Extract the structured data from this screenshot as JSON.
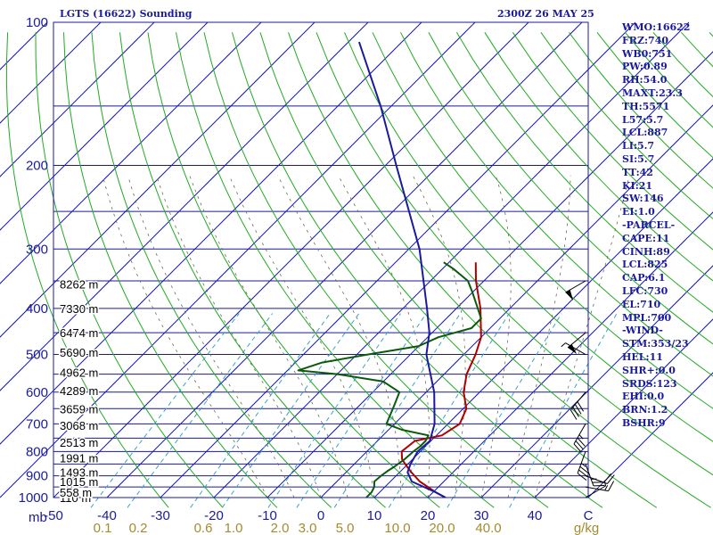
{
  "header": {
    "station": "LGTS (16622) Sounding",
    "time": "2300Z 26 MAY 25"
  },
  "stats": [
    "WMO:16622",
    "FRZ:740",
    "WB0:751",
    "PW:0.89",
    "RH:54.0",
    "MAXT:23.3",
    "TH:5571",
    "L57:5.7",
    "LCL:887",
    "LI:5.7",
    "SI:5.7",
    "TT:42",
    "KI:21",
    "SW:146",
    "EI:1.0",
    "-PARCEL-",
    "CAPE:11",
    "CINH:89",
    "LCL:825",
    "CAP:6.1",
    "LFC:730",
    "EL:710",
    "MPL:700",
    "-WIND-",
    "STM:353/23",
    "HEL:11",
    "SHR+:0.0",
    "SRDS:123",
    "EHI:0.0",
    "BRN:1.2",
    "BSHR:9"
  ],
  "chart_data": {
    "type": "line",
    "title": "LGTS (16622) Sounding",
    "xlabel": "",
    "ylabel": "mb",
    "xlim": [
      -50,
      50
    ],
    "ylim": [
      1000,
      100
    ],
    "y_scale": "log",
    "grid": true,
    "x_ticks": [
      "-50",
      "-40",
      "-30",
      "-20",
      "-10",
      "0",
      "10",
      "20",
      "30",
      "40",
      "C"
    ],
    "y_ticks": [
      "100",
      "200",
      "300",
      "400",
      "500",
      "600",
      "700",
      "800",
      "900",
      "1000"
    ],
    "y_tick_values": [
      100,
      200,
      300,
      400,
      500,
      600,
      700,
      800,
      900,
      1000
    ],
    "mixing_ratio_labels": [
      "0.1",
      "0.2",
      "0.6",
      "1.0",
      "2.0",
      "3.0",
      "5.0",
      "10.0",
      "20.0",
      "40.0",
      "g/kg"
    ],
    "height_labels": [
      {
        "p": 1000,
        "text": "110 m"
      },
      {
        "p": 975,
        "text": "558 m"
      },
      {
        "p": 925,
        "text": "1015 m"
      },
      {
        "p": 885,
        "text": "1493 m"
      },
      {
        "p": 825,
        "text": "1991 m"
      },
      {
        "p": 765,
        "text": "2513 m"
      },
      {
        "p": 705,
        "text": "3068 m"
      },
      {
        "p": 650,
        "text": "3659 m"
      },
      {
        "p": 595,
        "text": "4289 m"
      },
      {
        "p": 545,
        "text": "4962 m"
      },
      {
        "p": 495,
        "text": "5690 m"
      },
      {
        "p": 450,
        "text": "6474 m"
      },
      {
        "p": 400,
        "text": "7330 m"
      },
      {
        "p": 355,
        "text": "8262 m"
      }
    ],
    "series": [
      {
        "color": "#b00000",
        "values": [
          [
            1000,
            23.3
          ],
          [
            975,
            20.5
          ],
          [
            925,
            15.5
          ],
          [
            885,
            12.2
          ],
          [
            850,
            9.5
          ],
          [
            830,
            8.0
          ],
          [
            800,
            6.5
          ],
          [
            760,
            7.0
          ],
          [
            740,
            11.0
          ],
          [
            700,
            12.2
          ],
          [
            650,
            10.6
          ],
          [
            600,
            7.0
          ],
          [
            550,
            4.2
          ],
          [
            500,
            2.2
          ],
          [
            460,
            0.0
          ],
          [
            400,
            -5.5
          ],
          [
            350,
            -11.5
          ],
          [
            320,
            -15.0
          ]
        ]
      },
      {
        "color": "#0b5a0b",
        "values": [
          [
            1000,
            8.5
          ],
          [
            975,
            8.5
          ],
          [
            950,
            8.0
          ],
          [
            925,
            7.0
          ],
          [
            900,
            7.2
          ],
          [
            880,
            7.5
          ],
          [
            860,
            8.0
          ],
          [
            830,
            8.5
          ],
          [
            800,
            8.7
          ],
          [
            780,
            9.0
          ],
          [
            760,
            9.0
          ],
          [
            740,
            8.5
          ],
          [
            720,
            2.5
          ],
          [
            700,
            -1.5
          ],
          [
            640,
            -3.5
          ],
          [
            600,
            -5.0
          ],
          [
            570,
            -10.0
          ],
          [
            550,
            -20.0
          ],
          [
            540,
            -28.0
          ],
          [
            520,
            -25.0
          ],
          [
            500,
            -18.0
          ],
          [
            480,
            -10.0
          ],
          [
            460,
            -8.0
          ],
          [
            440,
            -3.5
          ],
          [
            420,
            -3.5
          ],
          [
            400,
            -6.0
          ],
          [
            370,
            -10.0
          ],
          [
            350,
            -13.0
          ],
          [
            330,
            -18.0
          ],
          [
            320,
            -21.0
          ]
        ]
      },
      {
        "color": "#1a1a9c",
        "values": [
          [
            1000,
            23.3
          ],
          [
            975,
            20.5
          ],
          [
            925,
            14.0
          ],
          [
            885,
            11.5
          ],
          [
            850,
            10.5
          ],
          [
            800,
            9.5
          ],
          [
            760,
            9.8
          ],
          [
            700,
            7.5
          ],
          [
            600,
            1.5
          ],
          [
            500,
            -7.0
          ],
          [
            450,
            -10.5
          ],
          [
            400,
            -15.5
          ],
          [
            300,
            -28.0
          ],
          [
            200,
            -48.0
          ],
          [
            150,
            -62.0
          ],
          [
            110,
            -78.0
          ]
        ]
      }
    ],
    "wind_barbs": [
      {
        "p": 1000,
        "dir": 60,
        "spd": 5
      },
      {
        "p": 950,
        "dir": 100,
        "spd": 15
      },
      {
        "p": 900,
        "dir": 110,
        "spd": 20
      },
      {
        "p": 850,
        "dir": 160,
        "spd": 25
      },
      {
        "p": 800,
        "dir": 200,
        "spd": 35
      },
      {
        "p": 700,
        "dir": 210,
        "spd": 35
      },
      {
        "p": 600,
        "dir": 220,
        "spd": 40
      },
      {
        "p": 500,
        "dir": 300,
        "spd": 5
      },
      {
        "p": 450,
        "dir": 230,
        "spd": 50
      },
      {
        "p": 350,
        "dir": 240,
        "spd": 50
      }
    ]
  }
}
